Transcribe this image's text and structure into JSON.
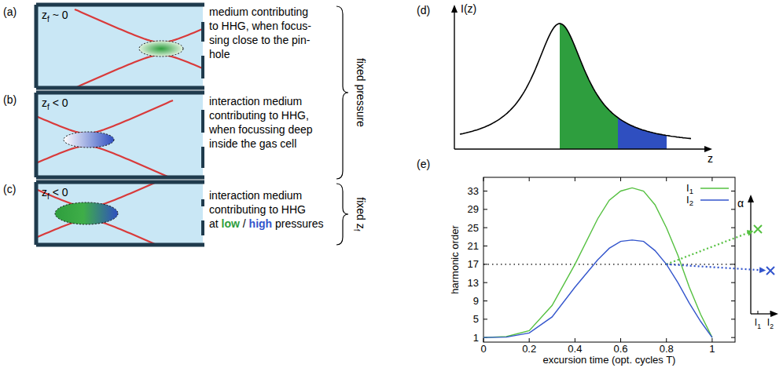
{
  "figure": {
    "panels": [
      {
        "letter": "(a)",
        "zf": {
          "base": "z",
          "sub": "f",
          "rest": " ~ 0"
        },
        "lines": [
          "medium contributing",
          "to HHG, when focus-",
          "sing close to the pin-",
          "hole"
        ]
      },
      {
        "letter": "(b)",
        "zf": {
          "base": "z",
          "sub": "f",
          "rest": " < 0"
        },
        "lines": [
          "interaction medium",
          "contributing to HHG,",
          "when focussing deep",
          "inside the gas cell"
        ]
      },
      {
        "letter": "(c)",
        "zf": {
          "base": "z",
          "sub": "f",
          "rest": " < 0"
        },
        "lines": [
          "interaction medium",
          "contributing to HHG",
          [
            {
              "text": "at "
            },
            {
              "text": "low",
              "color": "#2e9e3e"
            },
            {
              "text": " / "
            },
            {
              "text": "high",
              "color": "#3355cc"
            },
            {
              "text": " pressures"
            }
          ]
        ]
      }
    ],
    "braces": [
      {
        "label": {
          "base": "fixed pressure"
        }
      },
      {
        "label": {
          "base": "fixed z",
          "sub": "f"
        }
      }
    ],
    "panel_d": {
      "letter": "(d)",
      "ylabel": "I(z)",
      "xlabel": "z"
    },
    "panel_e": {
      "letter": "(e)",
      "inset": {
        "ylabel": "α",
        "ticks": [
          {
            "base": "I",
            "sub": "1"
          },
          {
            "base": "I",
            "sub": "2"
          }
        ]
      }
    }
  },
  "chart_data": {
    "type": "line",
    "xlabel": "excursion time (opt. cycles T)",
    "ylabel": "harmonic order",
    "x": [
      0,
      0.1,
      0.2,
      0.3,
      0.4,
      0.5,
      0.55,
      0.6,
      0.65,
      0.7,
      0.75,
      0.8,
      0.85,
      0.9,
      0.95,
      1.0
    ],
    "series": [
      {
        "name": "I1",
        "color": "#55c040",
        "values": [
          1,
          1.2,
          2.5,
          8,
          17,
          27,
          31,
          33,
          33.7,
          33,
          30,
          25,
          19,
          12,
          6,
          1
        ]
      },
      {
        "name": "I2",
        "color": "#3355cc",
        "values": [
          1,
          1.1,
          2,
          5.5,
          12,
          18,
          20.5,
          22,
          22.3,
          22,
          20,
          17,
          13,
          8.5,
          4.5,
          1
        ]
      }
    ],
    "xlim": [
      0,
      1.1
    ],
    "ylim": [
      0,
      36
    ],
    "xticks": [
      0,
      0.2,
      0.4,
      0.6,
      0.8,
      1
    ],
    "yticks": [
      1,
      5,
      9,
      13,
      17,
      21,
      25,
      29,
      33
    ],
    "legend": "upper right",
    "annotations": [
      {
        "type": "hline",
        "y": 17,
        "line_style": "dotted"
      }
    ]
  }
}
